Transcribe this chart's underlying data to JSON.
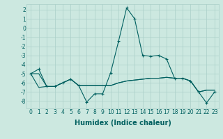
{
  "xlabel": "Humidex (Indice chaleur)",
  "background_color": "#cce8e0",
  "grid_color": "#aacfc8",
  "line_color": "#006060",
  "x": [
    0,
    1,
    2,
    3,
    4,
    5,
    6,
    7,
    8,
    9,
    10,
    11,
    12,
    13,
    14,
    15,
    16,
    17,
    18,
    19,
    20,
    21,
    22,
    23
  ],
  "series1": [
    -5.0,
    -4.5,
    -6.4,
    -6.4,
    -6.0,
    -5.6,
    -6.3,
    -8.1,
    -7.2,
    -7.2,
    -4.9,
    -1.4,
    2.2,
    1.0,
    -3.0,
    -3.1,
    -3.0,
    -3.4,
    -5.5,
    -5.5,
    -5.8,
    -7.0,
    -8.2,
    -7.0
  ],
  "series2": [
    -5.0,
    -5.0,
    -6.4,
    -6.4,
    -6.0,
    -5.6,
    -6.3,
    -6.3,
    -6.3,
    -6.3,
    -6.3,
    -6.0,
    -5.8,
    -5.7,
    -5.6,
    -5.5,
    -5.5,
    -5.4,
    -5.5,
    -5.5,
    -5.8,
    -7.0,
    -6.8,
    -6.8
  ],
  "series3": [
    -5.0,
    -6.5,
    -6.4,
    -6.4,
    -6.0,
    -5.6,
    -6.3,
    -6.3,
    -6.3,
    -6.3,
    -6.3,
    -6.0,
    -5.8,
    -5.7,
    -5.6,
    -5.5,
    -5.5,
    -5.4,
    -5.5,
    -5.5,
    -5.8,
    -7.0,
    -6.8,
    -6.8
  ],
  "ylim": [
    -8.8,
    2.6
  ],
  "yticks": [
    2,
    1,
    0,
    -1,
    -2,
    -3,
    -4,
    -5,
    -6,
    -7,
    -8
  ],
  "xlim": [
    -0.5,
    23.5
  ],
  "ylabel_fontsize": 6,
  "xlabel_fontsize": 7,
  "tick_fontsize": 5.5
}
